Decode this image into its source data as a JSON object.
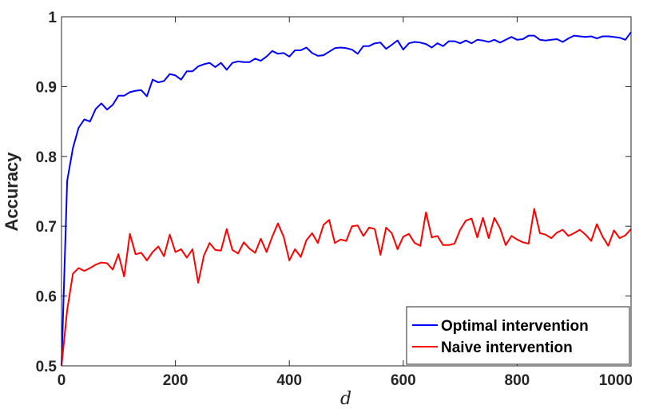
{
  "chart_data": {
    "type": "line",
    "xlabel": "d",
    "ylabel": "Accuracy",
    "xlim": [
      0,
      1000
    ],
    "ylim": [
      0.5,
      1.0
    ],
    "xticks": [
      0,
      200,
      400,
      600,
      800,
      1000
    ],
    "yticks": [
      0.5,
      0.6,
      0.7,
      0.8,
      0.9,
      1.0
    ],
    "xtick_labels": [
      "0",
      "200",
      "400",
      "600",
      "800",
      "1000"
    ],
    "ytick_labels": [
      "0.5",
      "0.6",
      "0.7",
      "0.8",
      "0.9",
      "1"
    ],
    "grid": false,
    "legend_position": "bottom-right",
    "x": [
      0,
      10,
      20,
      30,
      40,
      50,
      60,
      70,
      80,
      90,
      100,
      110,
      120,
      130,
      140,
      150,
      160,
      170,
      180,
      190,
      200,
      210,
      220,
      230,
      240,
      250,
      260,
      270,
      280,
      290,
      300,
      310,
      320,
      330,
      340,
      350,
      360,
      370,
      380,
      390,
      400,
      410,
      420,
      430,
      440,
      450,
      460,
      470,
      480,
      490,
      500,
      510,
      520,
      530,
      540,
      550,
      560,
      570,
      580,
      590,
      600,
      610,
      620,
      630,
      640,
      650,
      660,
      670,
      680,
      690,
      700,
      710,
      720,
      730,
      740,
      750,
      760,
      770,
      780,
      790,
      800,
      810,
      820,
      830,
      840,
      850,
      860,
      870,
      880,
      890,
      900,
      910,
      920,
      930,
      940,
      950,
      960,
      970,
      980,
      990,
      1000
    ],
    "series": [
      {
        "name": "Optimal intervention",
        "color": "#0000ff",
        "values": [
          0.5,
          0.765,
          0.812,
          0.841,
          0.853,
          0.85,
          0.868,
          0.876,
          0.867,
          0.874,
          0.887,
          0.887,
          0.892,
          0.894,
          0.895,
          0.886,
          0.91,
          0.906,
          0.908,
          0.918,
          0.916,
          0.91,
          0.922,
          0.922,
          0.929,
          0.932,
          0.934,
          0.928,
          0.934,
          0.924,
          0.934,
          0.936,
          0.935,
          0.935,
          0.94,
          0.937,
          0.943,
          0.951,
          0.947,
          0.948,
          0.943,
          0.952,
          0.952,
          0.956,
          0.948,
          0.944,
          0.945,
          0.95,
          0.955,
          0.956,
          0.955,
          0.953,
          0.947,
          0.958,
          0.958,
          0.962,
          0.963,
          0.954,
          0.96,
          0.966,
          0.953,
          0.962,
          0.964,
          0.963,
          0.961,
          0.956,
          0.962,
          0.958,
          0.965,
          0.965,
          0.962,
          0.966,
          0.962,
          0.967,
          0.966,
          0.964,
          0.967,
          0.963,
          0.967,
          0.971,
          0.967,
          0.968,
          0.973,
          0.973,
          0.967,
          0.966,
          0.967,
          0.968,
          0.964,
          0.969,
          0.973,
          0.972,
          0.971,
          0.972,
          0.969,
          0.972,
          0.972,
          0.971,
          0.97,
          0.967,
          0.978
        ]
      },
      {
        "name": "Naive intervention",
        "color": "#ff0000",
        "values": [
          0.5,
          0.58,
          0.632,
          0.64,
          0.636,
          0.64,
          0.645,
          0.648,
          0.647,
          0.638,
          0.66,
          0.628,
          0.689,
          0.66,
          0.662,
          0.651,
          0.663,
          0.671,
          0.657,
          0.688,
          0.663,
          0.667,
          0.655,
          0.667,
          0.619,
          0.658,
          0.676,
          0.666,
          0.665,
          0.696,
          0.666,
          0.661,
          0.677,
          0.668,
          0.662,
          0.682,
          0.663,
          0.685,
          0.704,
          0.685,
          0.651,
          0.667,
          0.656,
          0.68,
          0.69,
          0.676,
          0.702,
          0.709,
          0.676,
          0.681,
          0.679,
          0.7,
          0.701,
          0.686,
          0.698,
          0.696,
          0.659,
          0.698,
          0.69,
          0.667,
          0.685,
          0.689,
          0.676,
          0.672,
          0.72,
          0.684,
          0.686,
          0.673,
          0.673,
          0.675,
          0.695,
          0.708,
          0.711,
          0.684,
          0.712,
          0.683,
          0.712,
          0.697,
          0.673,
          0.686,
          0.681,
          0.677,
          0.675,
          0.725,
          0.69,
          0.688,
          0.683,
          0.691,
          0.695,
          0.686,
          0.69,
          0.695,
          0.688,
          0.679,
          0.703,
          0.685,
          0.672,
          0.694,
          0.683,
          0.687,
          0.696
        ]
      }
    ]
  }
}
